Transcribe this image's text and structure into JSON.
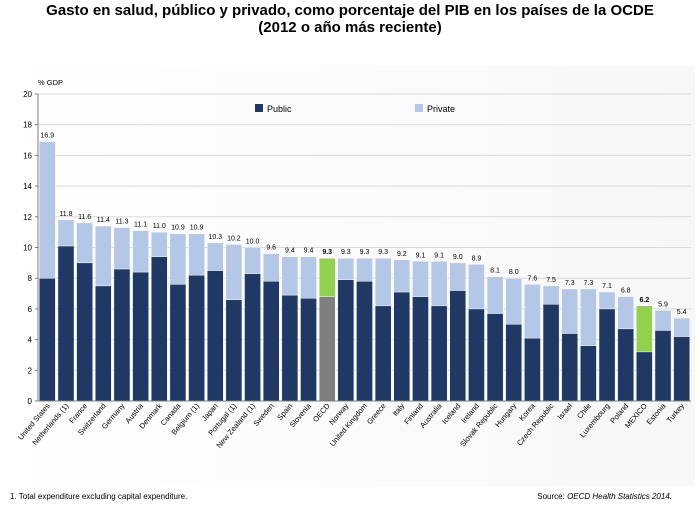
{
  "title_line1": "Gasto en salud, público y privado, como porcentaje del PIB en los países de la OCDE",
  "title_line2": "(2012 o año más reciente)",
  "footnote": "1. Total expenditure excluding capital expenditure.",
  "source_label": "Source:",
  "source_text": "OECD Health Statistics 2014.",
  "colors": {
    "public": "#1f3864",
    "private": "#b4c7e7",
    "oecd_public": "#7f7f7f",
    "highlight_private": "#92d050",
    "grid": "#d9d9d9",
    "axis": "#7f7f7f"
  },
  "chart_data": {
    "type": "bar",
    "stacked": true,
    "ylabel": "% GDP",
    "ylim": [
      0,
      20
    ],
    "yticks": [
      0,
      2,
      4,
      6,
      8,
      10,
      12,
      14,
      16,
      18,
      20
    ],
    "grid": true,
    "legend_position": "top",
    "categories": [
      "United States",
      "Netherlands (1)",
      "France",
      "Switzerland",
      "Germany",
      "Austria",
      "Denmark",
      "Canada",
      "Belgium (1)",
      "Japan",
      "Portugal (1)",
      "New Zealand (1)",
      "Sweden",
      "Spain",
      "Slovenia",
      "OECD",
      "Norway",
      "United Kingdom",
      "Greece",
      "Italy",
      "Finland",
      "Australia",
      "Iceland",
      "Ireland",
      "Slovak Republic",
      "Hungary",
      "Korea",
      "Czech Republic",
      "Israel",
      "Chile",
      "Luxembourg",
      "Poland",
      "MEXICO",
      "Estonia",
      "Turkey"
    ],
    "totals": [
      "16.9",
      "11.8",
      "11.6",
      "11.4",
      "11.3",
      "11.1",
      "11.0",
      "10.9",
      "10.9",
      "10.3",
      "10.2",
      "10.0",
      "9.6",
      "9.4",
      "9.4",
      "9.3",
      "9.3",
      "9.3",
      "9.3",
      "9.2",
      "9.1",
      "9.1",
      "9.0",
      "8.9",
      "8.1",
      "8.0",
      "7.6",
      "7.5",
      "7.3",
      "7.3",
      "7.1",
      "6.8",
      "6.2",
      "5.9",
      "5.4"
    ],
    "highlighted": [
      "OECD",
      "MEXICO"
    ],
    "series": [
      {
        "name": "Public",
        "values": [
          8.0,
          10.1,
          9.0,
          7.5,
          8.6,
          8.4,
          9.4,
          7.6,
          8.2,
          8.5,
          6.6,
          8.3,
          7.8,
          6.9,
          6.7,
          6.8,
          7.9,
          7.8,
          6.2,
          7.1,
          6.8,
          6.2,
          7.2,
          6.0,
          5.7,
          5.0,
          4.1,
          6.3,
          4.4,
          3.6,
          6.0,
          4.7,
          3.2,
          4.6,
          4.2
        ]
      },
      {
        "name": "Private",
        "values": [
          8.9,
          1.7,
          2.6,
          3.9,
          2.7,
          2.7,
          1.6,
          3.3,
          2.7,
          1.8,
          3.6,
          1.7,
          1.8,
          2.5,
          2.7,
          2.5,
          1.4,
          1.5,
          3.1,
          2.1,
          2.3,
          2.9,
          1.8,
          2.9,
          2.4,
          3.0,
          3.5,
          1.2,
          2.9,
          3.7,
          1.1,
          2.1,
          3.0,
          1.3,
          1.2
        ]
      }
    ]
  }
}
